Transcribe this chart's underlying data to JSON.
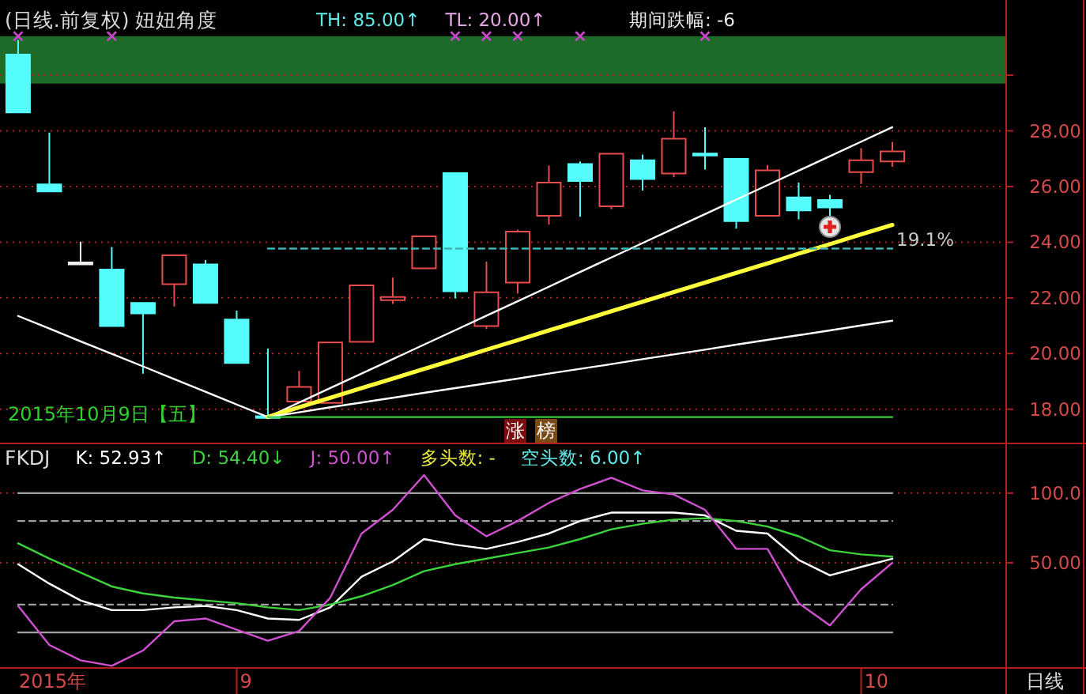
{
  "chart_data": [
    {
      "type": "candlestick",
      "title": "(日线.前复权) 妞妞角度",
      "categories": [
        null,
        null,
        null,
        null,
        null,
        null,
        null,
        null,
        null,
        null,
        null,
        null,
        null,
        null,
        null,
        null,
        null,
        null,
        null,
        null,
        null,
        null,
        null,
        null,
        null,
        null,
        null,
        null,
        null
      ],
      "ohlc": [
        [
          30.74,
          31.26,
          28.66,
          28.66
        ],
        [
          26.08,
          27.94,
          25.82,
          25.82
        ],
        [
          23.24,
          24.02,
          23.24,
          23.24
        ],
        [
          23.02,
          23.83,
          20.99,
          20.99
        ],
        [
          21.82,
          21.82,
          19.28,
          21.44
        ],
        [
          22.49,
          23.53,
          21.69,
          23.53
        ],
        [
          23.2,
          23.36,
          21.82,
          21.82
        ],
        [
          21.22,
          21.54,
          19.66,
          19.66
        ],
        [
          17.72,
          20.18,
          17.72,
          17.72
        ],
        [
          18.28,
          19.38,
          18.28,
          18.8
        ],
        [
          18.23,
          20.4,
          18.23,
          20.4
        ],
        [
          20.42,
          22.45,
          20.42,
          22.45
        ],
        [
          21.92,
          22.73,
          21.78,
          22.03
        ],
        [
          23.06,
          24.21,
          23.06,
          24.21
        ],
        [
          26.48,
          26.48,
          21.98,
          22.24
        ],
        [
          20.99,
          23.3,
          20.88,
          22.2
        ],
        [
          22.55,
          24.45,
          22.16,
          24.38
        ],
        [
          24.95,
          26.75,
          24.63,
          26.14
        ],
        [
          26.81,
          26.9,
          24.91,
          26.2
        ],
        [
          25.29,
          27.18,
          25.19,
          27.18
        ],
        [
          26.94,
          27.15,
          25.86,
          26.27
        ],
        [
          26.47,
          28.7,
          26.33,
          27.72
        ],
        [
          27.15,
          28.13,
          26.61,
          27.15
        ],
        [
          26.99,
          26.99,
          24.49,
          24.76
        ],
        [
          24.95,
          26.77,
          24.95,
          26.58
        ],
        [
          25.61,
          26.14,
          24.82,
          25.14
        ],
        [
          25.52,
          25.7,
          24.91,
          25.25
        ],
        [
          26.52,
          27.38,
          26.09,
          26.94
        ],
        [
          26.9,
          27.6,
          26.71,
          27.26
        ]
      ],
      "colors": [
        "#54fcfc",
        "#54fcfc",
        "#f0f0f0",
        "#54fcfc",
        "#54fcfc",
        "#e84c4c",
        "#54fcfc",
        "#54fcfc",
        "#54fcfc",
        "#e84c4c",
        "#e84c4c",
        "#e84c4c",
        "#e84c4c",
        "#e84c4c",
        "#54fcfc",
        "#e84c4c",
        "#e84c4c",
        "#e84c4c",
        "#54fcfc",
        "#e84c4c",
        "#54fcfc",
        "#e84c4c",
        "#54fcfc",
        "#54fcfc",
        "#e84c4c",
        "#54fcfc",
        "#54fcfc",
        "#e84c4c",
        "#e84c4c"
      ],
      "bands": [
        {
          "axis": "y",
          "from": 29.7,
          "to": 31.4,
          "color": "#1c6b28"
        }
      ],
      "series": [
        {
          "type": "line",
          "values": [
            21.35,
            20.9,
            20.44,
            19.99,
            19.54,
            19.08,
            18.63,
            18.17,
            17.72,
            null,
            null,
            null,
            null,
            null,
            null,
            null,
            null,
            null,
            null,
            null,
            null,
            null,
            null,
            null,
            null,
            null,
            null,
            null,
            null
          ],
          "color": "#ffffff"
        },
        {
          "type": "line",
          "values": [
            null,
            null,
            null,
            null,
            null,
            null,
            null,
            null,
            17.72,
            18.24,
            18.76,
            19.28,
            19.8,
            20.32,
            20.84,
            21.36,
            21.88,
            22.4,
            22.93,
            23.45,
            23.97,
            24.49,
            25.01,
            25.53,
            26.05,
            26.57,
            27.09,
            27.61,
            28.13
          ],
          "color": "#ffffff"
        },
        {
          "type": "line",
          "values": [
            null,
            null,
            null,
            null,
            null,
            null,
            null,
            null,
            17.72,
            18.07,
            18.41,
            18.76,
            19.1,
            19.45,
            19.79,
            20.14,
            20.48,
            20.83,
            21.17,
            21.52,
            21.86,
            22.21,
            22.55,
            22.9,
            23.24,
            23.59,
            23.93,
            24.28,
            24.62
          ],
          "color": "#ffff3c"
        },
        {
          "type": "line",
          "values": [
            null,
            null,
            null,
            null,
            null,
            null,
            null,
            null,
            17.72,
            17.89,
            18.07,
            18.24,
            18.41,
            18.59,
            18.76,
            18.93,
            19.1,
            19.28,
            19.45,
            19.62,
            19.8,
            19.97,
            20.14,
            20.32,
            20.49,
            20.66,
            20.83,
            21.01,
            21.18
          ],
          "color": "#ffffff"
        },
        {
          "type": "line",
          "values": [
            null,
            null,
            null,
            null,
            null,
            null,
            null,
            null,
            17.72,
            17.72,
            17.72,
            17.72,
            17.72,
            17.72,
            17.72,
            17.72,
            17.72,
            17.72,
            17.72,
            17.72,
            17.72,
            17.72,
            17.72,
            17.72,
            17.72,
            17.72,
            17.72,
            17.72,
            17.72
          ],
          "color": "#3cc83c"
        },
        {
          "type": "line",
          "values": [
            null,
            null,
            null,
            null,
            null,
            null,
            null,
            null,
            23.77,
            23.77,
            23.77,
            23.77,
            23.77,
            23.77,
            23.77,
            23.77,
            23.77,
            23.77,
            23.77,
            23.77,
            23.77,
            23.77,
            23.77,
            23.77,
            23.77,
            23.77,
            23.77,
            23.77,
            23.77
          ],
          "color": "#3cb4b4",
          "line_style": "dashed"
        },
        {
          "type": "scatter",
          "values": [
            31.4,
            null,
            null,
            31.4,
            null,
            null,
            null,
            null,
            null,
            null,
            null,
            null,
            null,
            null,
            31.4,
            31.4,
            31.4,
            null,
            31.4,
            null,
            null,
            null,
            31.4,
            null,
            null,
            null,
            null,
            null,
            null
          ],
          "color": "#c844c8",
          "marker": "cross"
        }
      ],
      "ylim": [
        16.8,
        32.7
      ],
      "yticks": [
        {
          "value": 18,
          "label": "18.00"
        },
        {
          "value": 20,
          "label": "20.00"
        },
        {
          "value": 22,
          "label": "22.00"
        },
        {
          "value": 24,
          "label": "24.00"
        },
        {
          "value": 26,
          "label": "26.00"
        },
        {
          "value": 28,
          "label": "28.00"
        },
        {
          "value": 30,
          "label": null
        }
      ],
      "grid": "y",
      "annotations": [
        "TH: 85.00↑",
        "TL: 20.00↑",
        "期间跌幅: -6",
        "19.1%",
        "涨",
        "榜",
        "2015年10月9日【五】"
      ]
    },
    {
      "type": "line",
      "title": "FKDJ",
      "categories": [
        null,
        null,
        null,
        null,
        null,
        null,
        null,
        "9",
        null,
        null,
        null,
        null,
        null,
        null,
        null,
        null,
        null,
        null,
        null,
        null,
        null,
        null,
        null,
        null,
        null,
        null,
        null,
        "10",
        null
      ],
      "series": [
        {
          "values": [
            100,
            100,
            100,
            100,
            100,
            100,
            100,
            100,
            100,
            100,
            100,
            100,
            100,
            100,
            100,
            100,
            100,
            100,
            100,
            100,
            100,
            100,
            100,
            100,
            100,
            100,
            100,
            100,
            100
          ],
          "color": "#a0a0a0"
        },
        {
          "values": [
            80,
            80,
            80,
            80,
            80,
            80,
            80,
            80,
            80,
            80,
            80,
            80,
            80,
            80,
            80,
            80,
            80,
            80,
            80,
            80,
            80,
            80,
            80,
            80,
            80,
            80,
            80,
            80,
            80
          ],
          "color": "#a0a0a0",
          "line_style": "dashed"
        },
        {
          "values": [
            20,
            20,
            20,
            20,
            20,
            20,
            20,
            20,
            20,
            20,
            20,
            20,
            20,
            20,
            20,
            20,
            20,
            20,
            20,
            20,
            20,
            20,
            20,
            20,
            20,
            20,
            20,
            20,
            20
          ],
          "color": "#a0a0a0",
          "line_style": "dashed"
        },
        {
          "values": [
            0,
            0,
            0,
            0,
            0,
            0,
            0,
            0,
            0,
            0,
            0,
            0,
            0,
            0,
            0,
            0,
            0,
            0,
            0,
            0,
            0,
            0,
            0,
            0,
            0,
            0,
            0,
            0,
            0
          ],
          "color": "#a0a0a0"
        },
        {
          "name": "K: 52.93↑",
          "color": "#ffffff",
          "values": [
            49,
            35,
            23,
            16,
            16,
            18,
            19,
            16,
            10,
            9,
            18,
            40,
            51,
            67,
            63,
            60,
            65,
            71,
            80,
            86,
            86,
            86,
            84,
            73,
            71,
            52,
            41,
            47,
            52.93
          ]
        },
        {
          "name": "D: 54.40↓",
          "color": "#3cd23c",
          "values": [
            64,
            53,
            43,
            33,
            28,
            25,
            23,
            21,
            18,
            16,
            20,
            26,
            34,
            44,
            49,
            53,
            57,
            61,
            67,
            74,
            78,
            81,
            82,
            80,
            76,
            69,
            59,
            56,
            54.4
          ]
        },
        {
          "name": "J: 50.00↑",
          "color": "#d050d0",
          "values": [
            19,
            -9,
            -20,
            -24,
            -13,
            8,
            10,
            2,
            -6,
            1,
            25,
            71,
            88,
            113,
            84,
            69,
            80,
            93,
            103,
            111,
            102,
            99,
            88,
            60,
            60,
            21,
            5,
            31,
            50
          ]
        }
      ],
      "ylim": [
        -24.9,
        135.1
      ],
      "yticks": [
        {
          "value": 50,
          "label": "50.00"
        },
        {
          "value": 100,
          "label": "100.0"
        }
      ],
      "grid": "y",
      "legend": "top left",
      "annotations": [
        "多头数: -",
        "空头数: 6.00↑",
        "日线",
        "2015年"
      ]
    }
  ]
}
